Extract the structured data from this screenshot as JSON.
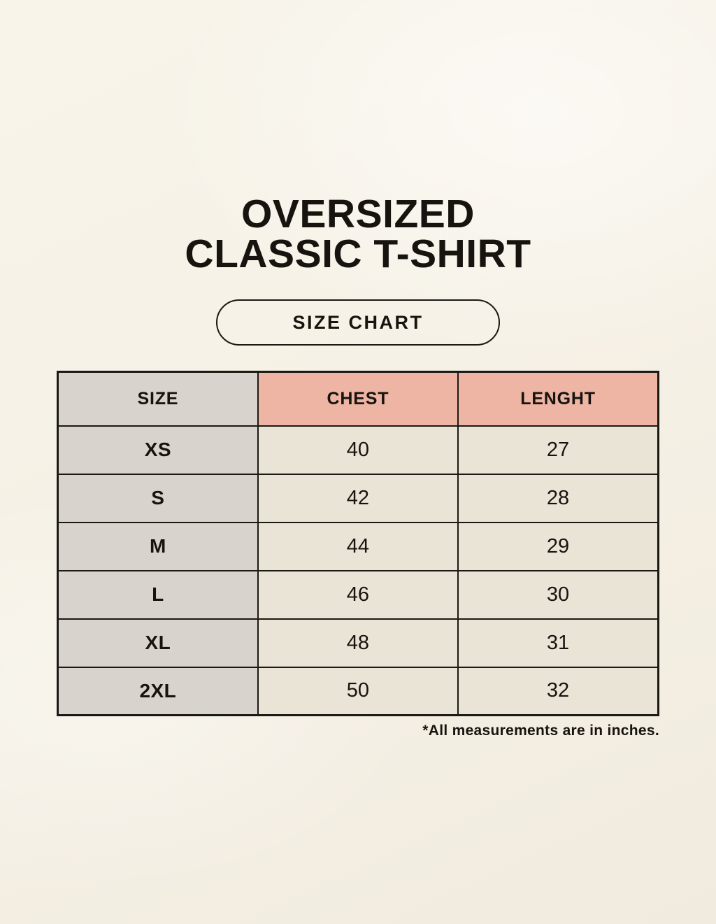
{
  "title": {
    "line1": "OVERSIZED",
    "line2": "CLASSIC T-SHIRT"
  },
  "size_chart_button": {
    "label": "SIZE CHART"
  },
  "chart_data": {
    "type": "table",
    "title": "OVERSIZED CLASSIC T-SHIRT — SIZE CHART",
    "columns": [
      "SIZE",
      "CHEST",
      "LENGHT"
    ],
    "rows": [
      {
        "size": "XS",
        "chest": 40,
        "length": 27
      },
      {
        "size": "S",
        "chest": 42,
        "length": 28
      },
      {
        "size": "M",
        "chest": 44,
        "length": 29
      },
      {
        "size": "L",
        "chest": 46,
        "length": 30
      },
      {
        "size": "XL",
        "chest": 48,
        "length": 31
      },
      {
        "size": "2XL",
        "chest": 50,
        "length": 32
      }
    ],
    "note": "*All measurements are in inches.",
    "units": "inches"
  },
  "colors": {
    "background": "#f6f1e6",
    "header_pink": "#efb5a4",
    "header_gray": "#d9d3cd",
    "cell_cream": "#eae4d7",
    "border_black": "#1b1914",
    "text": "#17140f"
  }
}
